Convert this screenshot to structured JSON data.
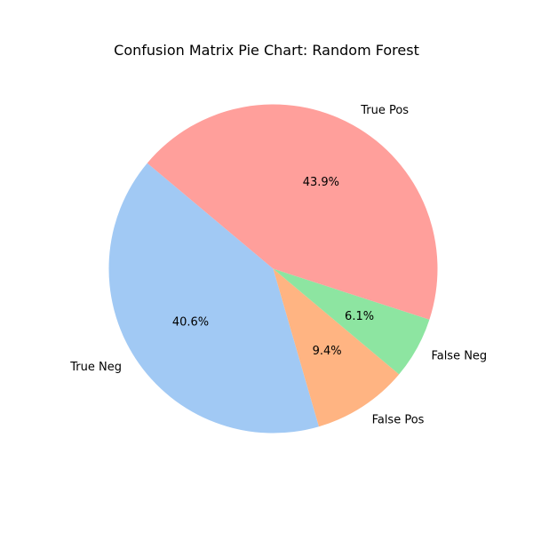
{
  "chart_data": {
    "type": "pie",
    "title": "Confusion Matrix Pie Chart: Random Forest",
    "slices": [
      {
        "label": "True Neg",
        "value": 40.6,
        "pct_label": "40.6%",
        "color": "#a1c9f4"
      },
      {
        "label": "False Pos",
        "value": 9.4,
        "pct_label": "9.4%",
        "color": "#ffb482"
      },
      {
        "label": "False Neg",
        "value": 6.1,
        "pct_label": "6.1%",
        "color": "#8de5a1"
      },
      {
        "label": "True Pos",
        "value": 43.9,
        "pct_label": "43.9%",
        "color": "#ff9f9b"
      }
    ],
    "start_angle_deg": 140,
    "direction": "counterclockwise",
    "legend": "none"
  }
}
